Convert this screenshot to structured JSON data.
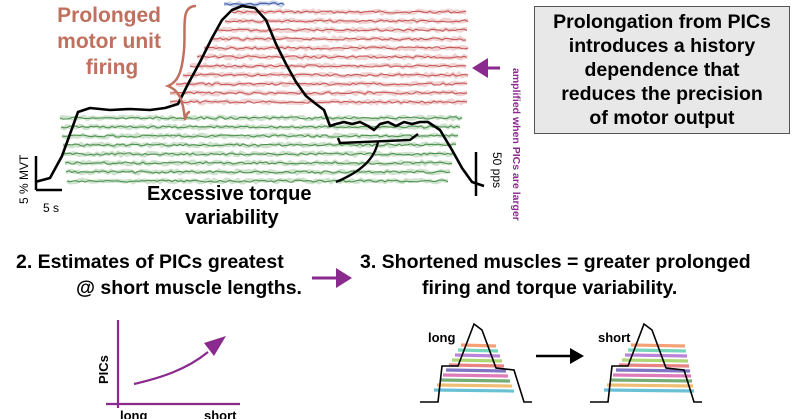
{
  "panel1": {
    "prolonged_label": [
      "Prolonged",
      "motor unit",
      "firing"
    ],
    "excessive_label": [
      "Excessive torque",
      "variability"
    ],
    "scale_y_label": "5 % MVT",
    "scale_x_label": "5 s",
    "scale_right_label": "50 pps",
    "amplified_note": "amplified when PICs are larger",
    "info_box": "Prolongation from PICs\nintroduces a history\ndependence that\nreduces the precision\nof motor output"
  },
  "panel2": {
    "title": [
      "2. Estimates of PICs greatest",
      "@ short muscle lengths."
    ],
    "graph": {
      "ylabel": "PICs",
      "x_tick_left": "long",
      "x_tick_right": "short"
    }
  },
  "panel3": {
    "title": [
      "3. Shortened muscles = greater prolonged",
      "firing and torque variability."
    ],
    "left_label": "long",
    "right_label": "short"
  },
  "colors": {
    "salmon_text": "#c0705e",
    "purple": "#8a2a8e",
    "red_trace": "#c24a4a",
    "green_trace": "#3f8a3f",
    "blue_trace": "#2a4aa0",
    "infobox_bg": "#e8e8e8"
  }
}
